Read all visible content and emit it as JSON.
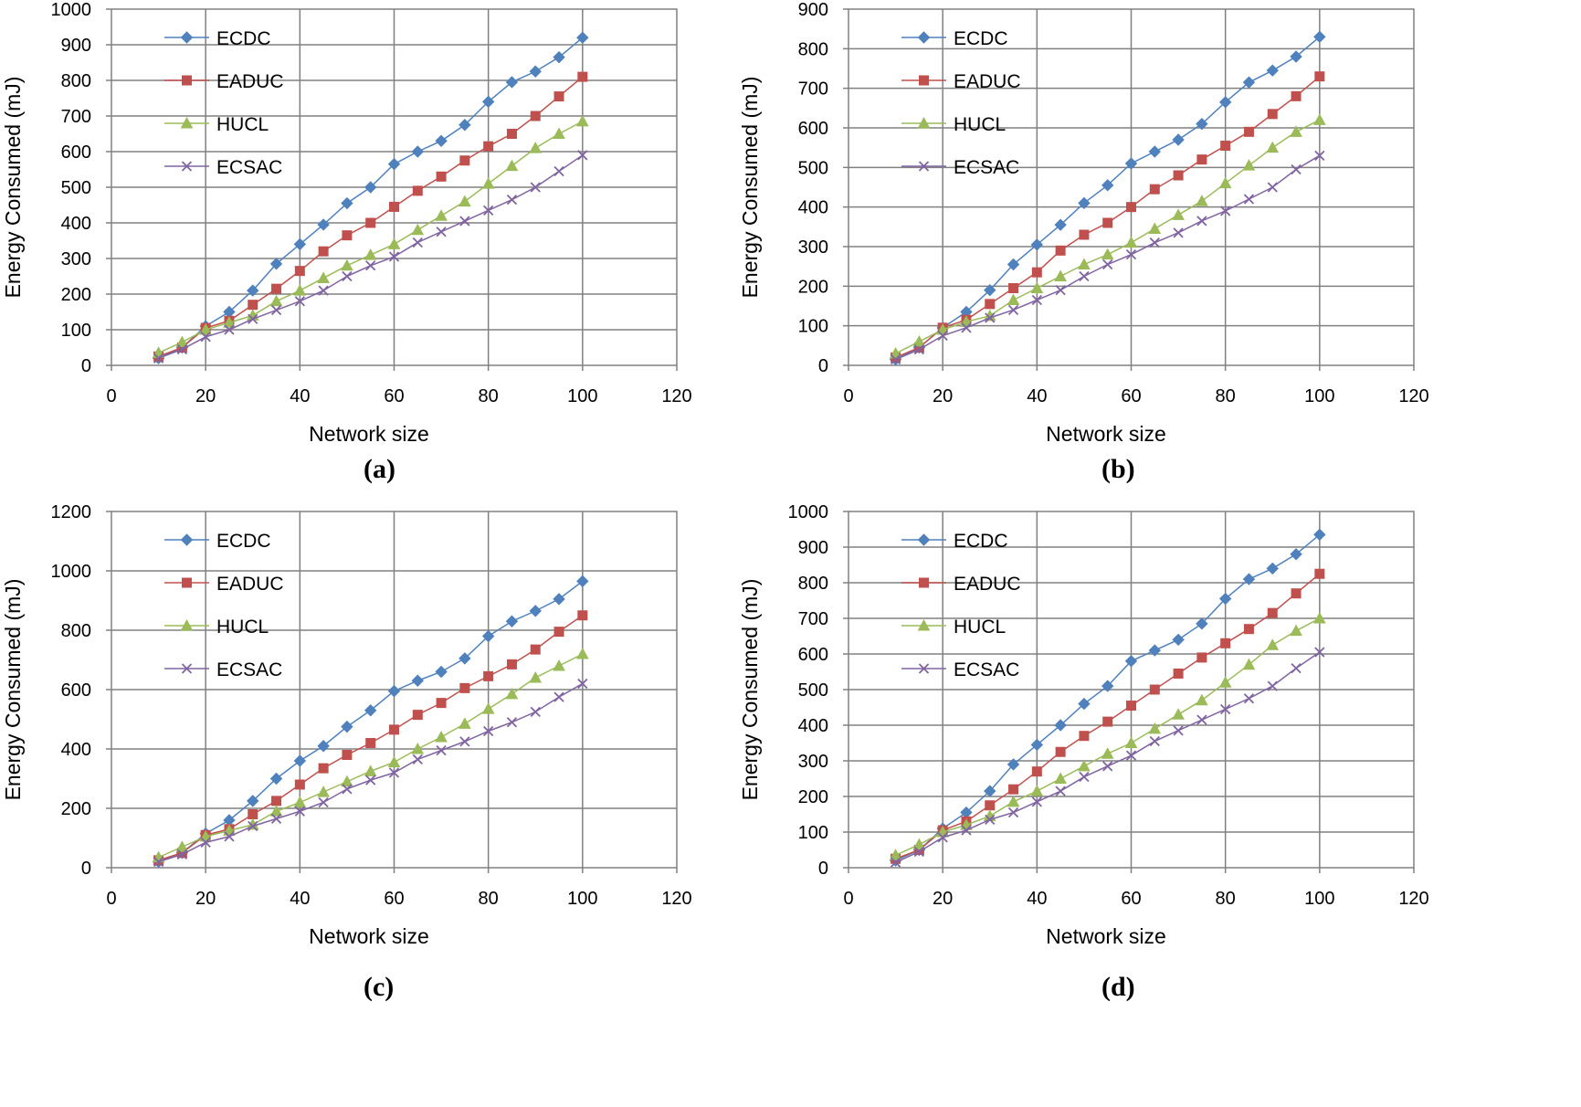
{
  "colors": {
    "ECDC": "#4F81BD",
    "EADUC": "#C0504D",
    "HUCL": "#9BBB59",
    "ECSAC": "#8064A2",
    "grid": "#808080",
    "axis": "#808080"
  },
  "chart_data": [
    {
      "type": "line",
      "panel_label": "(a)",
      "xlabel": "Network size",
      "ylabel": "Energy Consumed (mJ)",
      "xlim": [
        0,
        120
      ],
      "ylim": [
        0,
        1000
      ],
      "xticks": [
        0,
        20,
        40,
        60,
        80,
        100,
        120
      ],
      "yticks": [
        0,
        100,
        200,
        300,
        400,
        500,
        600,
        700,
        800,
        900,
        1000
      ],
      "x": [
        10,
        15,
        20,
        25,
        30,
        35,
        40,
        45,
        50,
        55,
        60,
        65,
        70,
        75,
        80,
        85,
        90,
        95,
        100
      ],
      "series": [
        {
          "name": "ECDC",
          "marker": "diamond",
          "values": [
            20,
            50,
            110,
            150,
            210,
            285,
            340,
            395,
            455,
            500,
            565,
            600,
            630,
            675,
            740,
            795,
            825,
            865,
            920
          ]
        },
        {
          "name": "EADUC",
          "marker": "square",
          "values": [
            25,
            50,
            105,
            125,
            170,
            215,
            265,
            320,
            365,
            400,
            445,
            490,
            530,
            575,
            615,
            650,
            700,
            755,
            810
          ]
        },
        {
          "name": "HUCL",
          "marker": "triangle",
          "values": [
            35,
            65,
            100,
            120,
            140,
            180,
            210,
            245,
            280,
            310,
            340,
            380,
            420,
            460,
            510,
            560,
            610,
            650,
            685
          ]
        },
        {
          "name": "ECSAC",
          "marker": "x",
          "values": [
            20,
            45,
            80,
            100,
            130,
            155,
            180,
            210,
            250,
            280,
            305,
            345,
            375,
            405,
            435,
            465,
            500,
            545,
            590
          ]
        }
      ]
    },
    {
      "type": "line",
      "panel_label": "(b)",
      "xlabel": "Network size",
      "ylabel": "Energy Consumed (mJ)",
      "xlim": [
        0,
        120
      ],
      "ylim": [
        0,
        900
      ],
      "xticks": [
        0,
        20,
        40,
        60,
        80,
        100,
        120
      ],
      "yticks": [
        0,
        100,
        200,
        300,
        400,
        500,
        600,
        700,
        800,
        900
      ],
      "x": [
        10,
        15,
        20,
        25,
        30,
        35,
        40,
        45,
        50,
        55,
        60,
        65,
        70,
        75,
        80,
        85,
        90,
        95,
        100
      ],
      "series": [
        {
          "name": "ECDC",
          "marker": "diamond",
          "values": [
            15,
            45,
            95,
            135,
            190,
            255,
            305,
            355,
            410,
            455,
            510,
            540,
            570,
            610,
            665,
            715,
            745,
            780,
            830
          ]
        },
        {
          "name": "EADUC",
          "marker": "square",
          "values": [
            20,
            45,
            95,
            115,
            155,
            195,
            235,
            290,
            330,
            360,
            400,
            445,
            480,
            520,
            555,
            590,
            635,
            680,
            730
          ]
        },
        {
          "name": "HUCL",
          "marker": "triangle",
          "values": [
            30,
            60,
            90,
            110,
            125,
            165,
            195,
            225,
            255,
            280,
            310,
            345,
            380,
            415,
            460,
            505,
            550,
            590,
            620
          ]
        },
        {
          "name": "ECSAC",
          "marker": "x",
          "values": [
            15,
            40,
            75,
            95,
            120,
            140,
            165,
            190,
            225,
            255,
            280,
            310,
            335,
            365,
            390,
            420,
            450,
            495,
            530
          ]
        }
      ]
    },
    {
      "type": "line",
      "panel_label": "(c)",
      "xlabel": "Network size",
      "ylabel": "Energy Consumed (mJ)",
      "xlim": [
        0,
        120
      ],
      "ylim": [
        0,
        1200
      ],
      "xticks": [
        0,
        20,
        40,
        60,
        80,
        100,
        120
      ],
      "yticks": [
        0,
        200,
        400,
        600,
        800,
        1000,
        1200
      ],
      "x": [
        10,
        15,
        20,
        25,
        30,
        35,
        40,
        45,
        50,
        55,
        60,
        65,
        70,
        75,
        80,
        85,
        90,
        95,
        100
      ],
      "series": [
        {
          "name": "ECDC",
          "marker": "diamond",
          "values": [
            20,
            50,
            115,
            160,
            225,
            300,
            360,
            410,
            475,
            530,
            595,
            630,
            660,
            705,
            780,
            830,
            865,
            905,
            965
          ]
        },
        {
          "name": "EADUC",
          "marker": "square",
          "values": [
            25,
            50,
            110,
            130,
            180,
            225,
            280,
            335,
            380,
            420,
            465,
            515,
            555,
            605,
            645,
            685,
            735,
            795,
            850
          ]
        },
        {
          "name": "HUCL",
          "marker": "triangle",
          "values": [
            35,
            70,
            105,
            125,
            145,
            190,
            220,
            255,
            290,
            325,
            355,
            400,
            440,
            485,
            535,
            585,
            640,
            680,
            720
          ]
        },
        {
          "name": "ECSAC",
          "marker": "x",
          "values": [
            20,
            45,
            85,
            105,
            140,
            165,
            190,
            220,
            265,
            295,
            320,
            365,
            395,
            425,
            460,
            490,
            525,
            575,
            620
          ]
        }
      ]
    },
    {
      "type": "line",
      "panel_label": "(d)",
      "xlabel": "Network size",
      "ylabel": "Energy Consumed (mJ)",
      "xlim": [
        0,
        120
      ],
      "ylim": [
        0,
        1000
      ],
      "xticks": [
        0,
        20,
        40,
        60,
        80,
        100,
        120
      ],
      "yticks": [
        0,
        100,
        200,
        300,
        400,
        500,
        600,
        700,
        800,
        900,
        1000
      ],
      "x": [
        10,
        15,
        20,
        25,
        30,
        35,
        40,
        45,
        50,
        55,
        60,
        65,
        70,
        75,
        80,
        85,
        90,
        95,
        100
      ],
      "series": [
        {
          "name": "ECDC",
          "marker": "diamond",
          "values": [
            20,
            50,
            110,
            155,
            215,
            290,
            345,
            400,
            460,
            510,
            580,
            610,
            640,
            685,
            755,
            810,
            840,
            880,
            935
          ]
        },
        {
          "name": "EADUC",
          "marker": "square",
          "values": [
            25,
            50,
            105,
            130,
            175,
            220,
            270,
            325,
            370,
            410,
            455,
            500,
            545,
            590,
            630,
            670,
            715,
            770,
            825
          ]
        },
        {
          "name": "HUCL",
          "marker": "triangle",
          "values": [
            35,
            65,
            100,
            120,
            145,
            185,
            215,
            250,
            285,
            320,
            350,
            390,
            430,
            470,
            520,
            570,
            625,
            665,
            700
          ]
        },
        {
          "name": "ECSAC",
          "marker": "x",
          "values": [
            15,
            45,
            85,
            105,
            135,
            155,
            185,
            215,
            255,
            285,
            315,
            355,
            385,
            415,
            445,
            475,
            510,
            560,
            605
          ]
        }
      ]
    }
  ]
}
